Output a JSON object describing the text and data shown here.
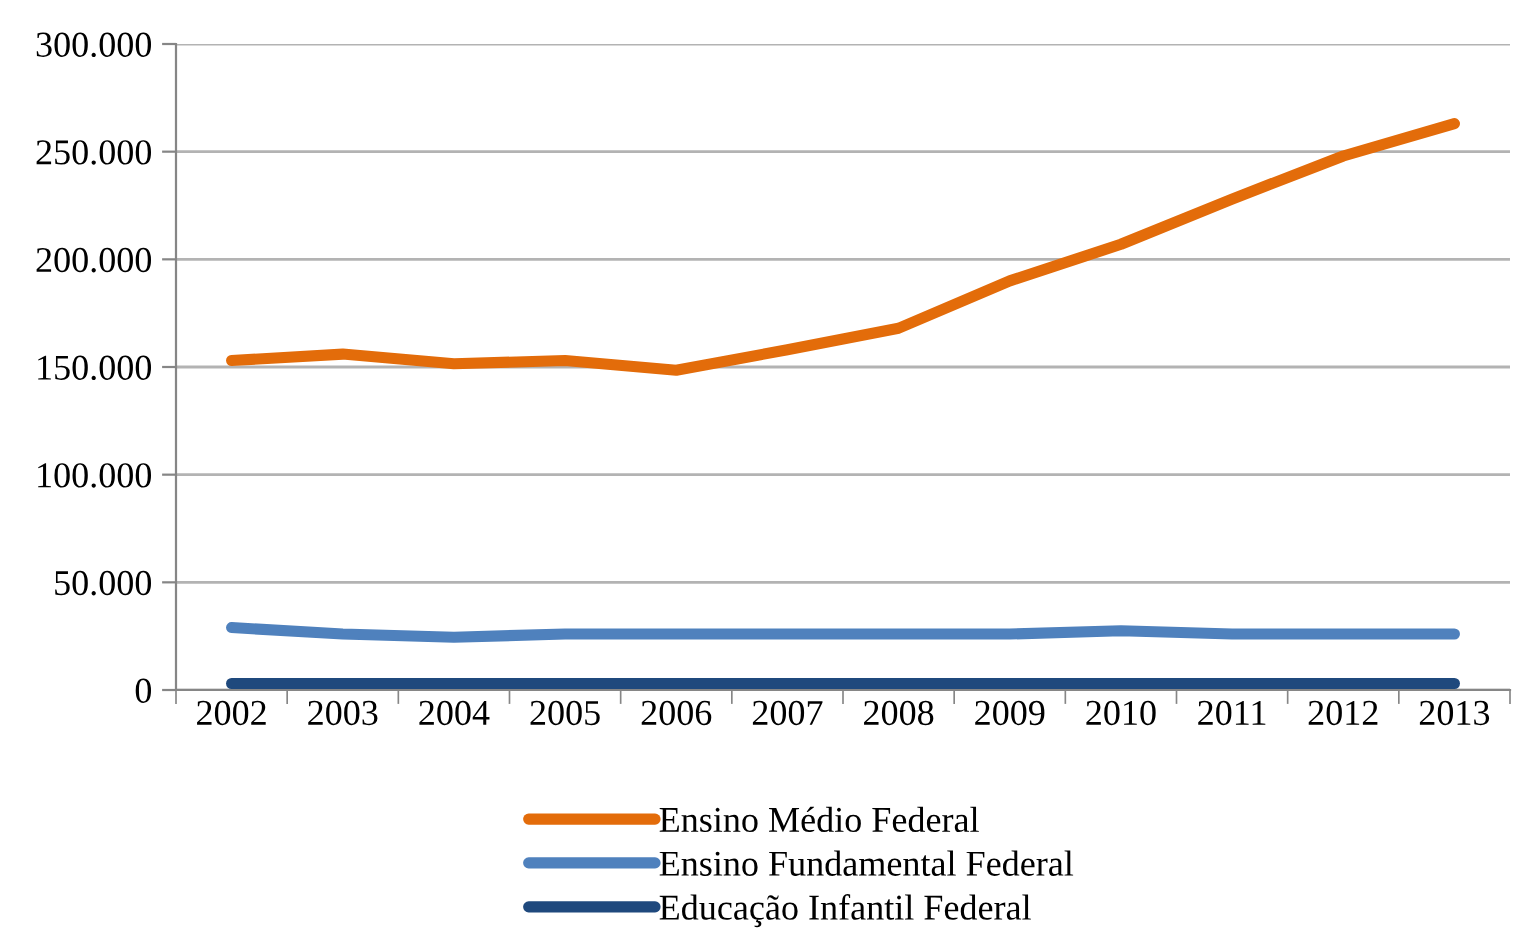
{
  "chart_data": {
    "type": "line",
    "categories": [
      "2002",
      "2003",
      "2004",
      "2005",
      "2006",
      "2007",
      "2008",
      "2009",
      "2010",
      "2011",
      "2012",
      "2013"
    ],
    "series": [
      {
        "name": "Ensino Médio Federal",
        "color": "#e36c0a",
        "values": [
          153000,
          156000,
          151500,
          153000,
          148500,
          158000,
          168000,
          190000,
          207000,
          228000,
          248000,
          263000
        ]
      },
      {
        "name": "Ensino Fundamental Federal",
        "color": "#4f81bd",
        "values": [
          29000,
          26000,
          24500,
          26000,
          26000,
          26000,
          26000,
          26000,
          27500,
          26000,
          26000,
          26000
        ]
      },
      {
        "name": "Educação Infantil Federal",
        "color": "#1f497d",
        "values": [
          3000,
          3000,
          3000,
          3000,
          3000,
          3000,
          3000,
          3000,
          3000,
          3000,
          3000,
          3000
        ]
      }
    ],
    "ylim": [
      0,
      300000
    ],
    "yticks": [
      {
        "value": 0,
        "label": "0"
      },
      {
        "value": 50000,
        "label": "50.000"
      },
      {
        "value": 100000,
        "label": "100.000"
      },
      {
        "value": 150000,
        "label": "150.000"
      },
      {
        "value": 200000,
        "label": "200.000"
      },
      {
        "value": 250000,
        "label": "250.000"
      },
      {
        "value": 300000,
        "label": "300.000"
      }
    ],
    "grid": "y",
    "legend": "bottom",
    "marker": "none",
    "line_style": "solid"
  }
}
